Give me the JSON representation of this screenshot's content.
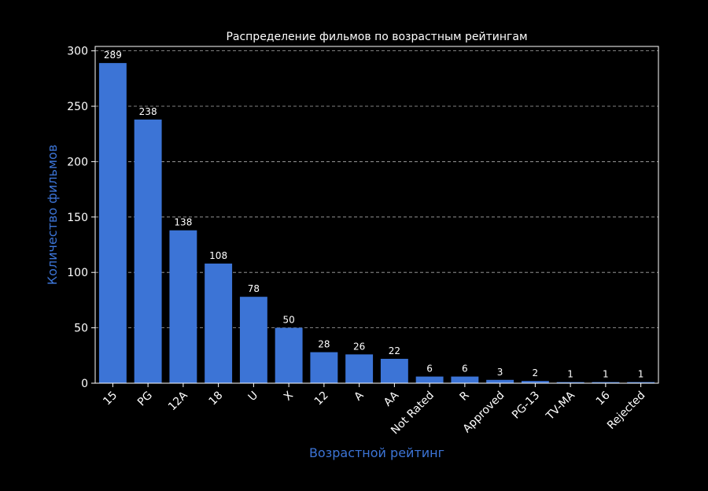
{
  "chart_data": {
    "type": "bar",
    "title": "Распределение фильмов по возрастным рейтингам",
    "xlabel": "Возрастной рейтинг",
    "ylabel": "Количество фильмов",
    "categories": [
      "15",
      "PG",
      "12A",
      "18",
      "U",
      "X",
      "12",
      "A",
      "AA",
      "Not Rated",
      "R",
      "Approved",
      "PG-13",
      "TV-MA",
      "16",
      "Rejected"
    ],
    "values": [
      289,
      238,
      138,
      108,
      78,
      50,
      28,
      26,
      22,
      6,
      6,
      3,
      2,
      1,
      1,
      1
    ],
    "ylim": [
      0,
      304
    ],
    "yticks": [
      0,
      50,
      100,
      150,
      200,
      250,
      300
    ],
    "grid": "y-dashed",
    "bar_color": "#3c74d6",
    "background": "#000000"
  }
}
